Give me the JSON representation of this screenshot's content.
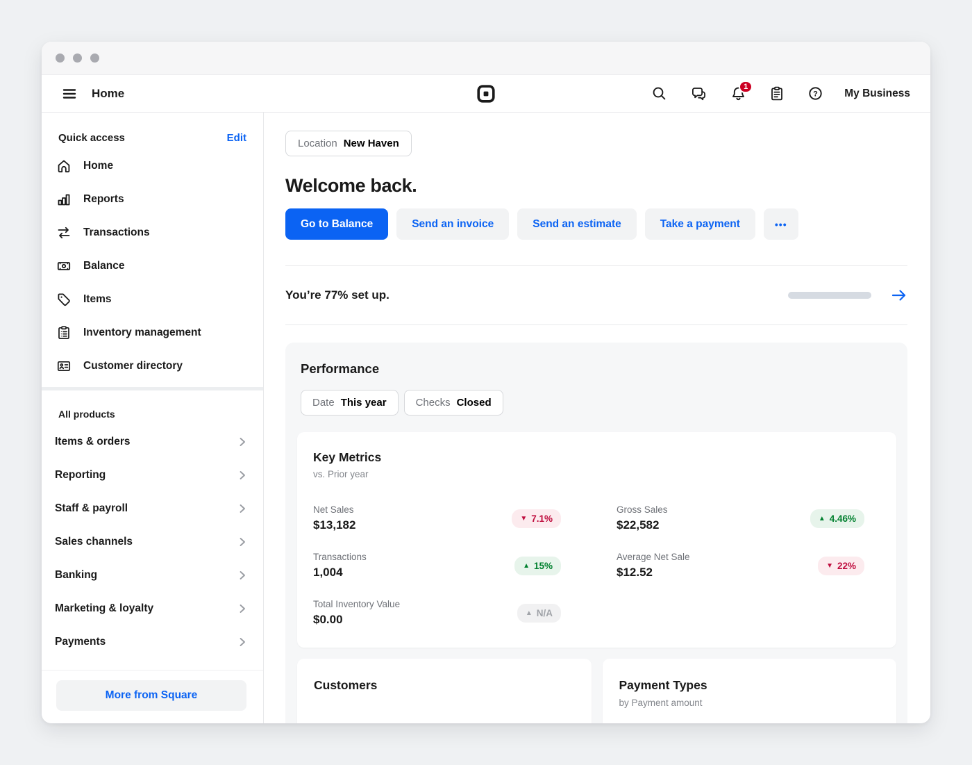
{
  "header": {
    "nav_title": "Home",
    "business_name": "My Business",
    "notification_count": "1"
  },
  "sidebar": {
    "quick_access": {
      "title": "Quick access",
      "edit_label": "Edit",
      "items": [
        {
          "label": "Home",
          "icon": "home-icon"
        },
        {
          "label": "Reports",
          "icon": "reports-icon"
        },
        {
          "label": "Transactions",
          "icon": "transactions-icon"
        },
        {
          "label": "Balance",
          "icon": "balance-icon"
        },
        {
          "label": "Items",
          "icon": "items-tag-icon"
        },
        {
          "label": "Inventory management",
          "icon": "inventory-clipboard-icon"
        },
        {
          "label": "Customer directory",
          "icon": "customer-card-icon"
        }
      ]
    },
    "all_products": {
      "title": "All products",
      "items": [
        {
          "label": "Items & orders"
        },
        {
          "label": "Reporting"
        },
        {
          "label": "Staff & payroll"
        },
        {
          "label": "Sales channels"
        },
        {
          "label": "Banking"
        },
        {
          "label": "Marketing & loyalty"
        },
        {
          "label": "Payments"
        }
      ]
    },
    "more_button": "More from Square"
  },
  "main": {
    "location": {
      "label": "Location",
      "value": "New Haven"
    },
    "welcome": "Welcome back.",
    "actions": {
      "primary": "Go to Balance",
      "secondary": [
        "Send an invoice",
        "Send an estimate",
        "Take a payment"
      ],
      "more": "•••"
    },
    "setup": {
      "text": "You’re 77% set up.",
      "progress_percent": 77
    },
    "performance": {
      "title": "Performance",
      "filters": [
        {
          "label": "Date",
          "value": "This year"
        },
        {
          "label": "Checks",
          "value": "Closed"
        }
      ],
      "key_metrics": {
        "title": "Key Metrics",
        "subtitle": "vs. Prior year",
        "metrics": [
          {
            "label": "Net Sales",
            "value": "$13,182",
            "arrow": "▼",
            "change": "7.1%",
            "tone": "negative"
          },
          {
            "label": "Gross Sales",
            "value": "$22,582",
            "arrow": "▲",
            "change": "4.46%",
            "tone": "positive"
          },
          {
            "label": "Transactions",
            "value": "1,004",
            "arrow": "▲",
            "change": "15%",
            "tone": "positive"
          },
          {
            "label": "Average Net Sale",
            "value": "$12.52",
            "arrow": "▼",
            "change": "22%",
            "tone": "negative"
          },
          {
            "label": "Total Inventory Value",
            "value": "$0.00",
            "arrow": "▲",
            "change": "N/A",
            "tone": "neutral"
          }
        ]
      },
      "customers_card": {
        "title": "Customers"
      },
      "payment_types_card": {
        "title": "Payment Types",
        "subtitle": "by Payment amount"
      }
    }
  },
  "colors": {
    "accent_blue": "#0b63f3",
    "negative_text": "#bf0d3e",
    "negative_bg": "#fcebee",
    "positive_text": "#00802e",
    "positive_bg": "#e7f4eb",
    "neutral_text": "#a0a3a8",
    "neutral_bg": "#f1f1f2",
    "notification_red": "#cc0023"
  }
}
